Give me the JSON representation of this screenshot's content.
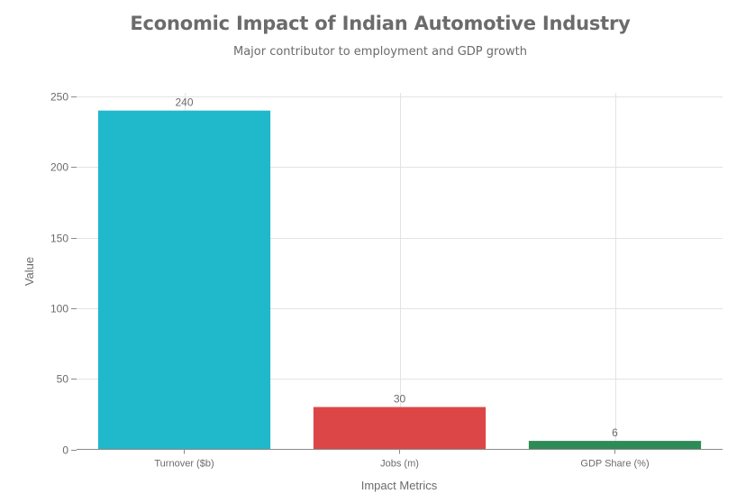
{
  "title": "Economic Impact of Indian Automotive Industry",
  "subtitle": "Major contributor to employment and GDP growth",
  "chart_data": {
    "type": "bar",
    "title": "Economic Impact of Indian Automotive Industry",
    "subtitle": "Major contributor to employment and GDP growth",
    "xlabel": "Impact Metrics",
    "ylabel": "Value",
    "categories": [
      "Turnover ($b)",
      "Jobs (m)",
      "GDP Share (%)"
    ],
    "values": [
      240,
      30,
      6
    ],
    "data_labels": [
      "240",
      "30",
      "6"
    ],
    "colors": [
      "#20b8cb",
      "#dd4647",
      "#2e8b57"
    ],
    "ylim": [
      0,
      250
    ],
    "yticks": [
      0,
      50,
      100,
      150,
      200,
      250
    ],
    "grid": true,
    "legend": "none"
  }
}
